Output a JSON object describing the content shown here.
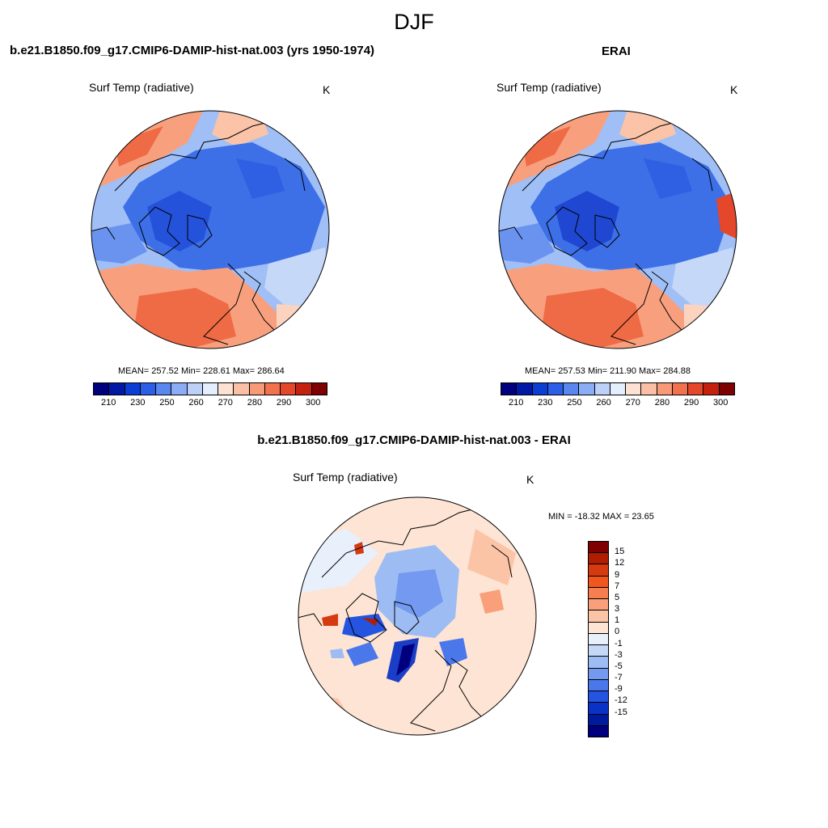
{
  "page": {
    "season": "DJF",
    "units": "K",
    "variable": "Surf Temp (radiative)"
  },
  "panels": {
    "model": {
      "title": "b.e21.B1850.f09_g17.CMIP6-DAMIP-hist-nat.003 (yrs 1950-1974)",
      "stats": "MEAN= 257.52  Min= 228.61  Max= 286.64"
    },
    "obs": {
      "title": "ERAI",
      "stats": "MEAN= 257.53  Min= 211.90  Max= 284.88"
    },
    "diff": {
      "title": "b.e21.B1850.f09_g17.CMIP6-DAMIP-hist-nat.003 - ERAI",
      "stats": "MIN = -18.32 MAX =  23.65"
    }
  },
  "colorbars": {
    "absolute": {
      "colors": [
        "#00007f",
        "#001aa6",
        "#0a3fd6",
        "#2b5fe8",
        "#5a86f0",
        "#8cacf5",
        "#bcd0f8",
        "#e4eefc",
        "#fde2d4",
        "#fbbfa6",
        "#f89a78",
        "#f2724d",
        "#e4472a",
        "#c4220f",
        "#7f0000"
      ],
      "labels": [
        "210",
        "230",
        "250",
        "260",
        "270",
        "280",
        "290",
        "300"
      ]
    },
    "difference": {
      "colors": [
        "#7f0000",
        "#b01d00",
        "#d63a10",
        "#f0561e",
        "#f67f50",
        "#f9a07a",
        "#fbc4a6",
        "#fde4d4",
        "#e8f0fb",
        "#c6d8f8",
        "#9ebcf4",
        "#7399f0",
        "#4a77ea",
        "#2454e0",
        "#0a32c6",
        "#001a9f",
        "#00007f"
      ],
      "labels": [
        "15",
        "12",
        "9",
        "7",
        "5",
        "3",
        "1",
        "0",
        "-1",
        "-3",
        "-5",
        "-7",
        "-9",
        "-12",
        "-15"
      ]
    }
  }
}
